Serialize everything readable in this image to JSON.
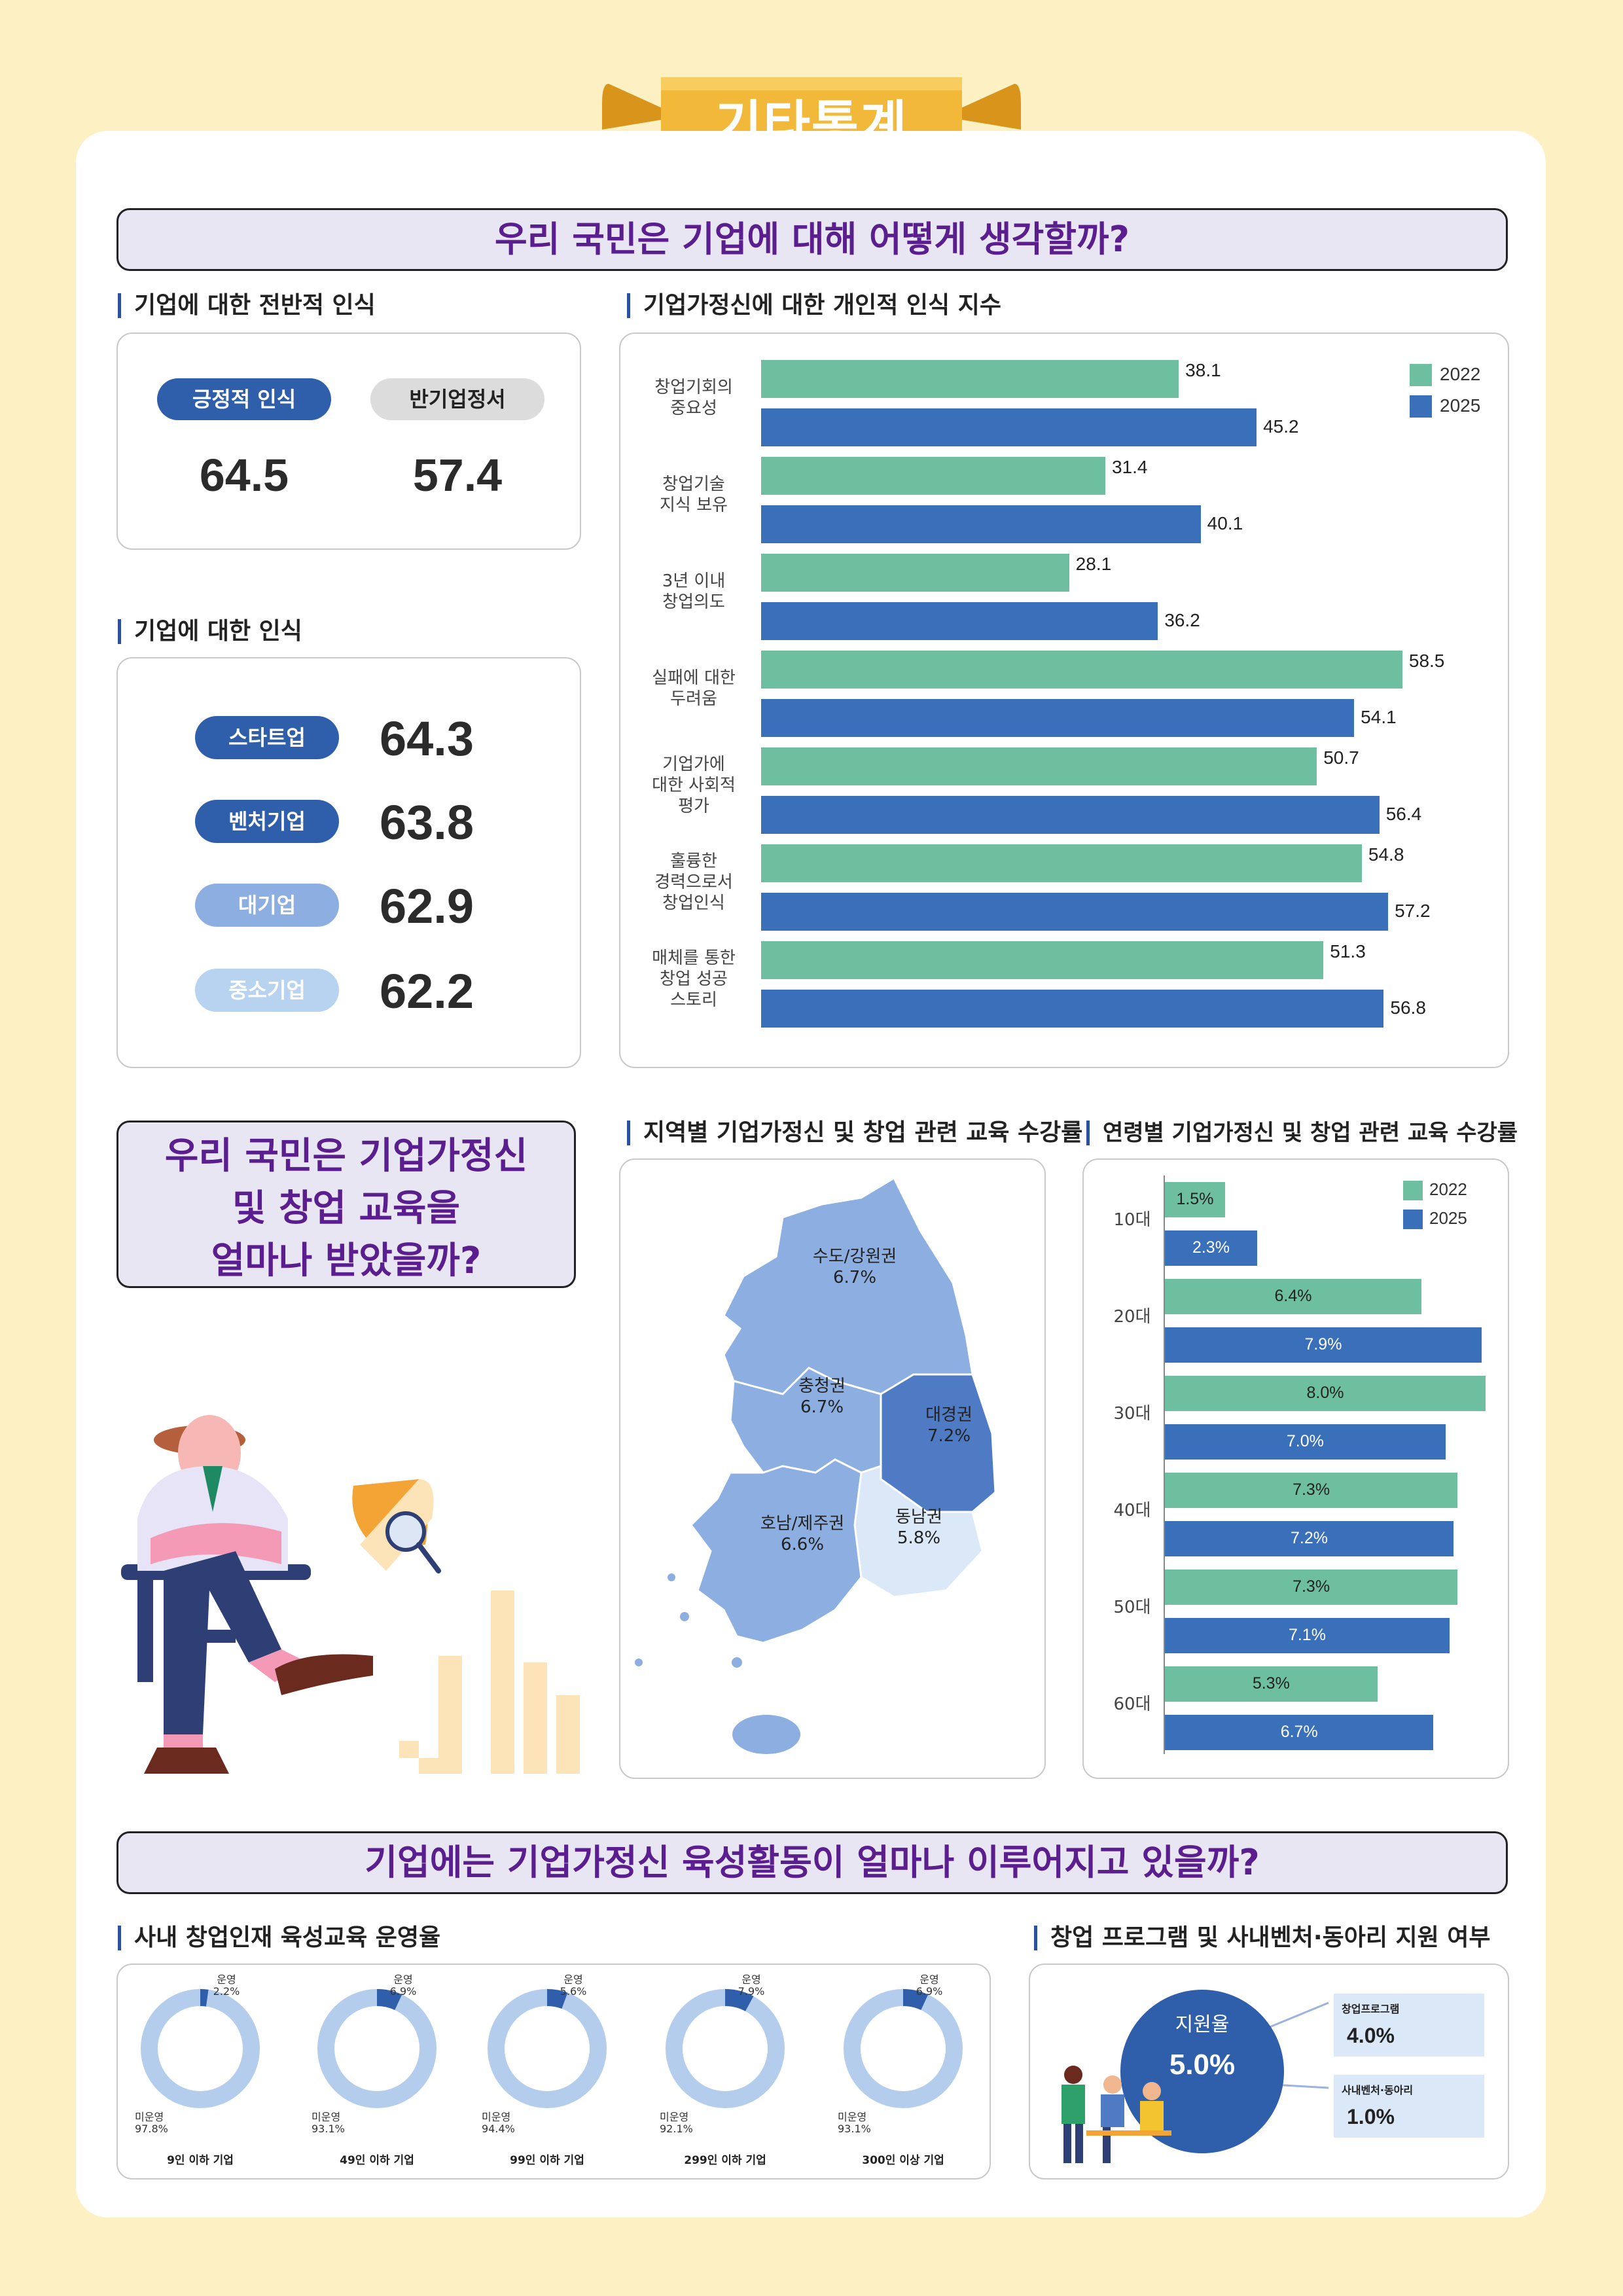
{
  "header": {
    "title": "기타통계"
  },
  "section1": {
    "banner": "우리 국민은 기업에 대해 어떻게 생각할까?",
    "overall": {
      "subtitle": "기업에 대한 전반적 인식",
      "items": [
        {
          "label": "긍정적 인식",
          "value": "64.5"
        },
        {
          "label": "반기업정서",
          "value": "57.4"
        }
      ]
    },
    "perception": {
      "subtitle": "기업에 대한 인식",
      "items": [
        {
          "label": "스타트업",
          "value": "64.3"
        },
        {
          "label": "벤처기업",
          "value": "63.8"
        },
        {
          "label": "대기업",
          "value": "62.9"
        },
        {
          "label": "중소기업",
          "value": "62.2"
        }
      ]
    }
  },
  "section2": {
    "banner_lines": [
      "우리 국민은 기업가정신",
      "및 창업 교육을",
      "얼마나 받았을까?"
    ],
    "region": {
      "subtitle": "지역별 기업가정신 및 창업 관련 교육 수강률",
      "regions": [
        {
          "name": "수도/강원권",
          "value": "6.7%"
        },
        {
          "name": "충청권",
          "value": "6.7%"
        },
        {
          "name": "대경권",
          "value": "7.2%"
        },
        {
          "name": "호남/제주권",
          "value": "6.6%"
        },
        {
          "name": "동남권",
          "value": "5.8%"
        }
      ]
    }
  },
  "section3": {
    "banner": "기업에는 기업가정신 육성활동이 얼마나 이루어지고 있을까?",
    "inhouse": {
      "subtitle": "사내 창업인재 육성교육 운영율"
    },
    "support": {
      "subtitle": "창업 프로그램 및 사내벤처·동아리 지원 여부",
      "rate_label": "지원율",
      "rate_value": "5.0%",
      "items": [
        {
          "label": "창업프로그램",
          "value": "4.0%"
        },
        {
          "label": "사내벤처·동아리",
          "value": "1.0%"
        }
      ]
    }
  },
  "chart_data": [
    {
      "type": "bar",
      "orientation": "horizontal",
      "title": "기업가정신에 대한 개인적 인식 지수",
      "categories": [
        [
          "창업기회의",
          "중요성"
        ],
        [
          "창업기술",
          "지식 보유"
        ],
        [
          "3년 이내",
          "창업의도"
        ],
        [
          "실패에 대한",
          "두려움"
        ],
        [
          "기업가에",
          "대한 사회적",
          "평가"
        ],
        [
          "훌륭한",
          "경력으로서",
          "창업인식"
        ],
        [
          "매체를 통한",
          "창업 성공",
          "스토리"
        ]
      ],
      "series": [
        {
          "name": "2022",
          "color": "#6dbf9f",
          "values": [
            38.1,
            31.4,
            28.1,
            58.5,
            50.7,
            54.8,
            51.3
          ]
        },
        {
          "name": "2025",
          "color": "#3a6fb9",
          "values": [
            45.2,
            40.1,
            36.2,
            54.1,
            56.4,
            57.2,
            56.8
          ]
        }
      ],
      "xlim": [
        0,
        60
      ],
      "legend": "top-right"
    },
    {
      "type": "bar",
      "orientation": "horizontal",
      "title": "연령별 기업가정신 및 창업 관련 교육 수강률",
      "categories": [
        "10대",
        "20대",
        "30대",
        "40대",
        "50대",
        "60대"
      ],
      "series": [
        {
          "name": "2022",
          "color": "#6dbf9f",
          "values": [
            1.5,
            6.4,
            8.0,
            7.3,
            7.3,
            5.3
          ],
          "labels": [
            "1.5%",
            "6.4%",
            "8.0%",
            "7.3%",
            "7.3%",
            "5.3%"
          ]
        },
        {
          "name": "2025",
          "color": "#3a6fb9",
          "values": [
            2.3,
            7.9,
            7.0,
            7.2,
            7.1,
            6.7
          ],
          "labels": [
            "2.3%",
            "7.9%",
            "7.0%",
            "7.2%",
            "7.1%",
            "6.7%"
          ]
        }
      ],
      "xlim": [
        0,
        8
      ],
      "legend": "top-right"
    },
    {
      "type": "pie",
      "variant": "donut",
      "title": "사내 창업인재 육성교육 운영율",
      "groups": [
        {
          "name": "9인 이하 기업",
          "slices": [
            {
              "label": "운영",
              "value": 2.2,
              "text": "2.2%"
            },
            {
              "label": "미운영",
              "value": 97.8,
              "text": "97.8%"
            }
          ]
        },
        {
          "name": "49인 이하 기업",
          "slices": [
            {
              "label": "운영",
              "value": 6.9,
              "text": "6.9%"
            },
            {
              "label": "미운영",
              "value": 93.1,
              "text": "93.1%"
            }
          ]
        },
        {
          "name": "99인 이하 기업",
          "slices": [
            {
              "label": "운영",
              "value": 5.6,
              "text": "5.6%"
            },
            {
              "label": "미운영",
              "value": 94.4,
              "text": "94.4%"
            }
          ]
        },
        {
          "name": "299인 이하 기업",
          "slices": [
            {
              "label": "운영",
              "value": 7.9,
              "text": "7.9%"
            },
            {
              "label": "미운영",
              "value": 92.1,
              "text": "92.1%"
            }
          ]
        },
        {
          "name": "300인 이상 기업",
          "slices": [
            {
              "label": "운영",
              "value": 6.9,
              "text": "6.9%"
            },
            {
              "label": "미운영",
              "value": 93.1,
              "text": "93.1%"
            }
          ]
        }
      ],
      "colors": {
        "operating": "#2f5fab",
        "not_operating": "#b5cdec"
      }
    }
  ]
}
